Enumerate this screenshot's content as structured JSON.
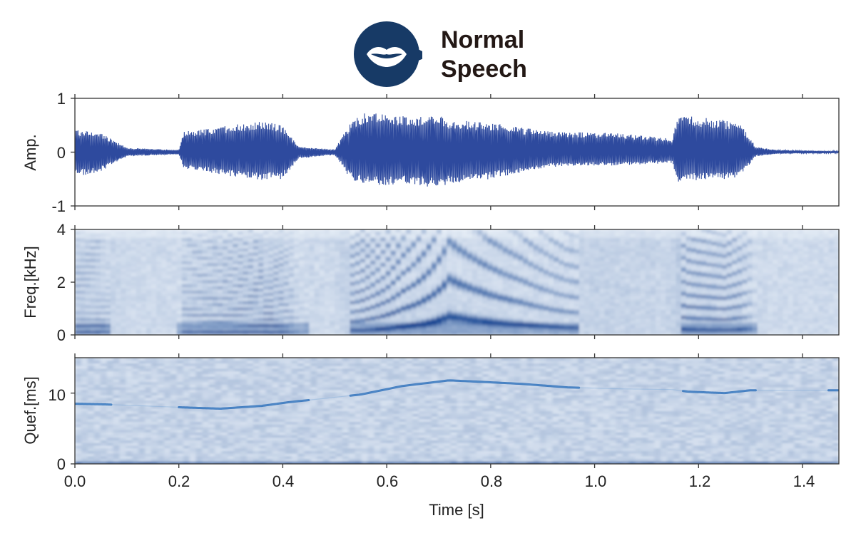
{
  "header": {
    "title_line1": "Normal",
    "title_line2": "Speech",
    "icon": "lips-speech-bubble-icon",
    "badge_color": "#173a66"
  },
  "colors": {
    "waveform": "#2e4a9e",
    "spectro_light": "#f2f7fc",
    "spectro_dark": "#0c3f8f"
  },
  "chart_data": [
    {
      "type": "line",
      "panel": "waveform",
      "title": "",
      "xlabel": "",
      "ylabel": "Amp.",
      "xlim": [
        0,
        1.47
      ],
      "ylim": [
        -1,
        1
      ],
      "yticks": [
        "-1",
        "0",
        "1"
      ],
      "envelope": {
        "t": [
          0,
          0.04,
          0.07,
          0.1,
          0.2,
          0.21,
          0.3,
          0.36,
          0.4,
          0.43,
          0.5,
          0.53,
          0.56,
          0.65,
          0.7,
          0.72,
          0.8,
          0.9,
          0.95,
          1.05,
          1.15,
          1.16,
          1.25,
          1.28,
          1.31,
          1.35,
          1.47
        ],
        "upper": [
          0.42,
          0.4,
          0.25,
          0.08,
          0.04,
          0.38,
          0.5,
          0.58,
          0.5,
          0.1,
          0.05,
          0.55,
          0.75,
          0.65,
          0.72,
          0.6,
          0.55,
          0.4,
          0.38,
          0.35,
          0.25,
          0.7,
          0.6,
          0.55,
          0.1,
          0.04,
          0.02
        ],
        "lower": [
          -0.45,
          -0.4,
          -0.25,
          -0.08,
          -0.04,
          -0.3,
          -0.45,
          -0.52,
          -0.5,
          -0.12,
          -0.05,
          -0.5,
          -0.62,
          -0.6,
          -0.68,
          -0.58,
          -0.5,
          -0.3,
          -0.25,
          -0.25,
          -0.2,
          -0.55,
          -0.52,
          -0.45,
          -0.08,
          -0.03,
          -0.02
        ]
      }
    },
    {
      "type": "heatmap",
      "panel": "spectrogram",
      "title": "",
      "xlabel": "",
      "ylabel": "Freq.[kHz]",
      "xlim": [
        0,
        1.47
      ],
      "ylim": [
        0,
        4
      ],
      "yticks": [
        "0",
        "2",
        "4"
      ],
      "voiced_segments": [
        [
          0.0,
          0.07
        ],
        [
          0.2,
          0.45
        ],
        [
          0.53,
          0.97
        ],
        [
          1.17,
          1.31
        ]
      ]
    },
    {
      "type": "heatmap",
      "panel": "cepstrogram",
      "title": "",
      "xlabel": "Time [s]",
      "ylabel": "Quef.[ms]",
      "xlim": [
        0,
        1.47
      ],
      "ylim": [
        0,
        15
      ],
      "yticks": [
        "0",
        "10"
      ],
      "xticks": [
        "0.0",
        "0.2",
        "0.4",
        "0.6",
        "0.8",
        "1.0",
        "1.2",
        "1.4"
      ],
      "pitch_track_ms": {
        "t": [
          0.0,
          0.06,
          0.2,
          0.28,
          0.36,
          0.41,
          0.55,
          0.63,
          0.72,
          0.78,
          0.86,
          0.95,
          1.05,
          1.15,
          1.18,
          1.25,
          1.3,
          1.45,
          1.47
        ],
        "quefrency": [
          8.5,
          8.4,
          8.0,
          7.8,
          8.2,
          8.7,
          9.8,
          11.0,
          11.8,
          11.6,
          11.3,
          10.8,
          10.6,
          10.5,
          10.2,
          10.0,
          10.4,
          10.4,
          10.4
        ]
      }
    }
  ]
}
